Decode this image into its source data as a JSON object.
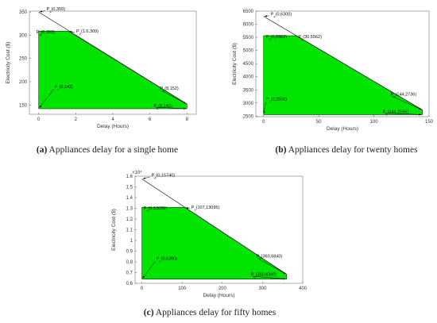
{
  "chart_data": [
    {
      "type": "area",
      "caption_label": "(a)",
      "caption_text": " Appliances delay for a single home",
      "xlabel": "Delay (Hours)",
      "ylabel": "Electricity Cost ($)",
      "xlim": [
        -0.5,
        8.5
      ],
      "ylim": [
        130,
        352
      ],
      "x_ticks": [
        0,
        2,
        4,
        6,
        8
      ],
      "y_ticks": [
        150,
        200,
        250,
        300,
        350
      ],
      "y_exponent": "",
      "cost_line": {
        "x": [
          0,
          8
        ],
        "y": [
          350,
          152
        ]
      },
      "green_region": {
        "x": [
          0,
          0,
          1.6,
          8,
          8
        ],
        "y": [
          142,
          309,
          309,
          152,
          142
        ]
      },
      "points": [
        {
          "label": "P4(0,350)",
          "sub": "4",
          "coords": "(0,350)",
          "x": 0,
          "y": 350
        },
        {
          "label": "P3(0,309)",
          "sub": "3",
          "coords": "(0,309)",
          "x": 0,
          "y": 309
        },
        {
          "label": "P2(1.6,309)",
          "sub": "2",
          "coords": "(1.6,309)",
          "x": 1.6,
          "y": 309
        },
        {
          "label": "P1(0,142)",
          "sub": "1",
          "coords": "(0,142)",
          "x": 0,
          "y": 142
        },
        {
          "label": "P5(8,152)",
          "sub": "5",
          "coords": "(8,152)",
          "x": 8,
          "y": 152
        },
        {
          "label": "P6(8,142)",
          "sub": "6",
          "coords": "(8,142)",
          "x": 8,
          "y": 142
        }
      ]
    },
    {
      "type": "area",
      "caption_label": "(b)",
      "caption_text": " Appliances delay for twenty homes",
      "xlabel": "Delay (Hours)",
      "ylabel": "Electricity Cost ($)",
      "xlim": [
        -7,
        150
      ],
      "ylim": [
        2480,
        6500
      ],
      "x_ticks": [
        0,
        50,
        100,
        150
      ],
      "y_ticks": [
        2500,
        3000,
        3500,
        4000,
        4500,
        5000,
        5500,
        6000,
        6500
      ],
      "y_exponent": "",
      "cost_line": {
        "x": [
          0,
          144
        ],
        "y": [
          6300,
          2736
        ]
      },
      "green_region": {
        "x": [
          0,
          0,
          30,
          144,
          144
        ],
        "y": [
          2556,
          5562,
          5562,
          2736,
          2556
        ]
      },
      "points": [
        {
          "label": "P4(0,6300)",
          "sub": "4",
          "coords": "(0,6300)",
          "x": 0,
          "y": 6300
        },
        {
          "label": "P3(0,5562)",
          "sub": "3",
          "coords": "(0,5562)",
          "x": 0,
          "y": 5562
        },
        {
          "label": "P2(30,5562)",
          "sub": "2",
          "coords": "(30,5562)",
          "x": 30,
          "y": 5562
        },
        {
          "label": "P1(0,2556)",
          "sub": "1",
          "coords": "(0,2556)",
          "x": 0,
          "y": 2556
        },
        {
          "label": "P5(144,2736)",
          "sub": "5",
          "coords": "(144,2736)",
          "x": 144,
          "y": 2736
        },
        {
          "label": "P6(144,2556)",
          "sub": "6",
          "coords": "(144,2556)",
          "x": 144,
          "y": 2556
        }
      ]
    },
    {
      "type": "area",
      "caption_label": "(c)",
      "caption_text": " Appliances delay for fifty homes",
      "xlabel": "Delay (Hours)",
      "ylabel": "Electricity Cost ($)",
      "xlim": [
        -17,
        400
      ],
      "ylim": [
        6000,
        16000
      ],
      "x_ticks": [
        0,
        100,
        200,
        300,
        400
      ],
      "x_tick_labels": [
        "0",
        "100",
        "200",
        "300",
        "400"
      ],
      "y_ticks": [
        6000,
        7000,
        8000,
        9000,
        10000,
        11000,
        12000,
        13000,
        14000,
        15000,
        16000
      ],
      "y_tick_labels": [
        "0.6",
        "0.7",
        "0.8",
        "0.9",
        "1",
        "1.1",
        "1.2",
        "1.3",
        "1.4",
        "1.5",
        "1.6"
      ],
      "y_exponent": "×10⁴",
      "cost_line": {
        "x": [
          0,
          360
        ],
        "y": [
          15740,
          6840
        ]
      },
      "green_region": {
        "x": [
          0,
          0,
          107,
          360,
          360
        ],
        "y": [
          6390,
          13095,
          13095,
          6840,
          6390
        ]
      },
      "points": [
        {
          "label": "P4(0,15740)",
          "sub": "4",
          "coords": "(0,15740)",
          "x": 0,
          "y": 15740
        },
        {
          "label": "P3(0,13095)",
          "sub": "3",
          "coords": "(0,13095)",
          "x": 0,
          "y": 13095
        },
        {
          "label": "P2(107,13095)",
          "sub": "2",
          "coords": "(107,13095)",
          "x": 107,
          "y": 13095
        },
        {
          "label": "P1(0,6390)",
          "sub": "1",
          "coords": "(0,6390)",
          "x": 0,
          "y": 6390
        },
        {
          "label": "P5(360,6840)",
          "sub": "5",
          "coords": "(360,6840)",
          "x": 360,
          "y": 6840
        },
        {
          "label": "P6(360,6390)",
          "sub": "6",
          "coords": "(360,6390)",
          "x": 360,
          "y": 6390
        }
      ]
    }
  ]
}
